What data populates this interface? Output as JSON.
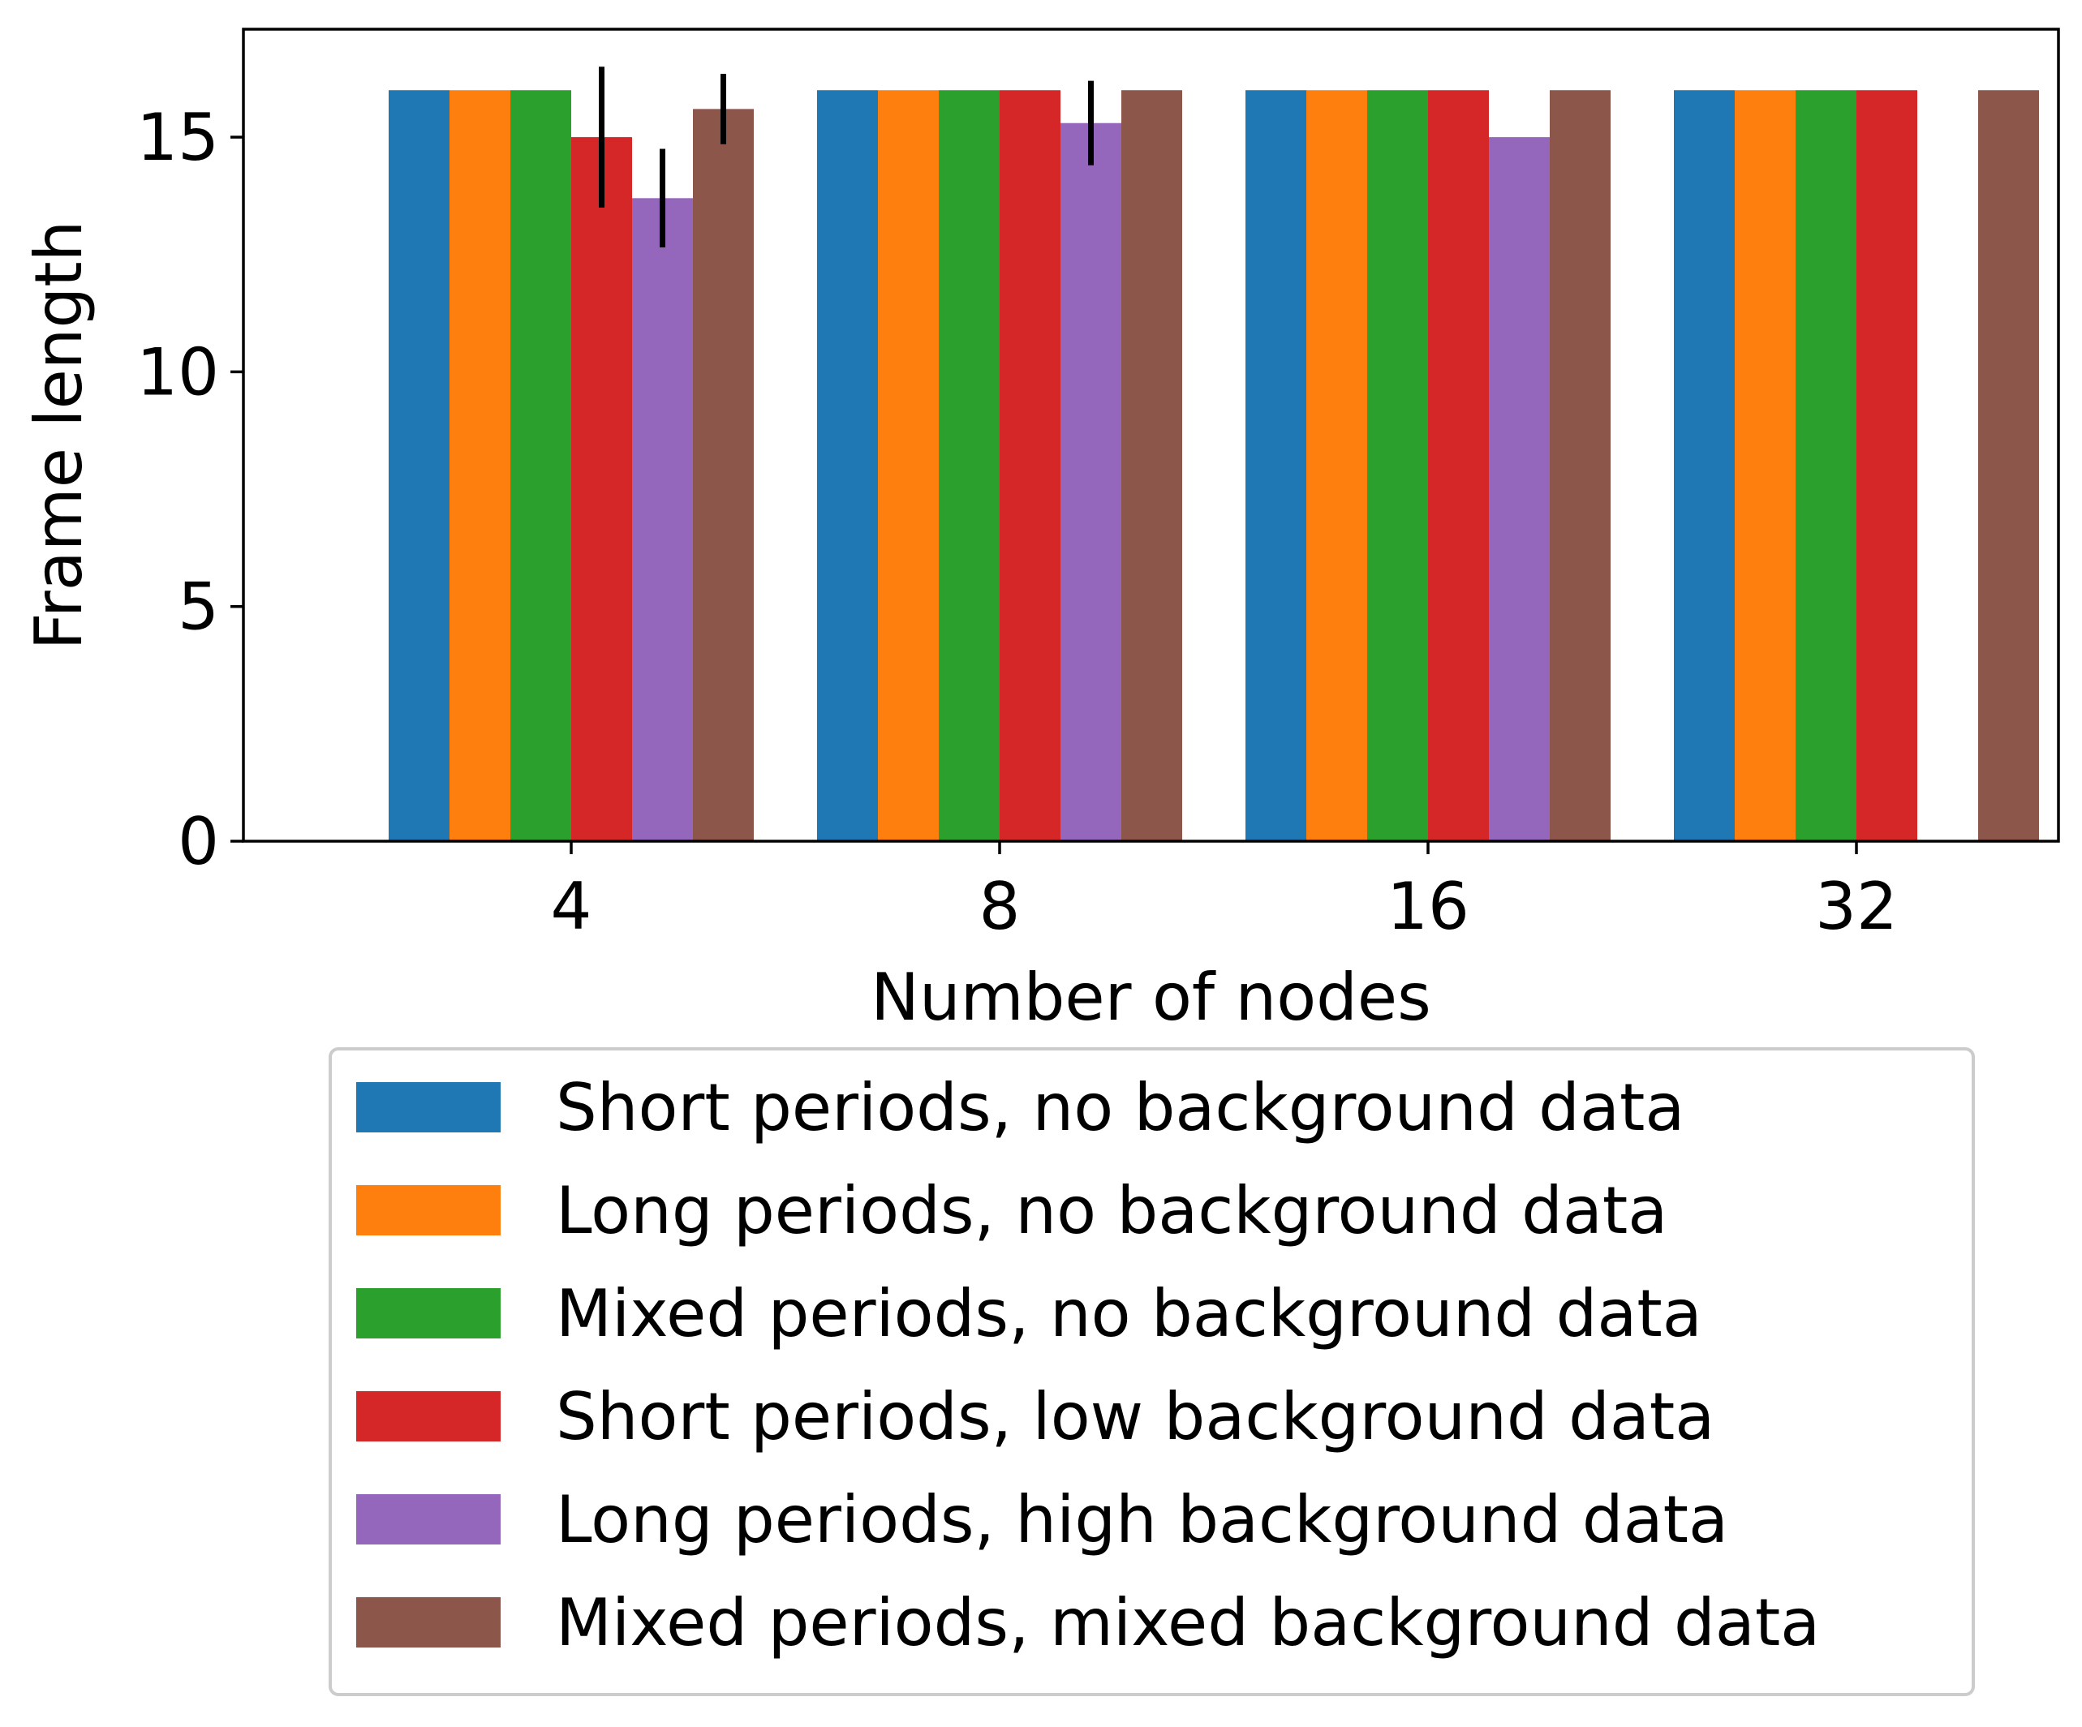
{
  "chart_data": {
    "type": "bar",
    "xlabel": "Number of nodes",
    "ylabel": "Frame length",
    "categories": [
      "4",
      "8",
      "16",
      "32"
    ],
    "yticks": [
      "0",
      "5",
      "10",
      "15"
    ],
    "ylim": [
      0,
      17.3
    ],
    "grid": false,
    "legend_position": "bottom",
    "series": [
      {
        "name": "Short periods, no background data",
        "color": "#1f77b4",
        "values": [
          16,
          16,
          16,
          16
        ],
        "errors": [
          0,
          0,
          0,
          0
        ]
      },
      {
        "name": "Long periods, no background data",
        "color": "#ff7f0e",
        "values": [
          16,
          16,
          16,
          16
        ],
        "errors": [
          0,
          0,
          0,
          0
        ]
      },
      {
        "name": "Mixed periods, no background data",
        "color": "#2ca02c",
        "values": [
          16,
          16,
          16,
          16
        ],
        "errors": [
          0,
          0,
          0,
          0
        ]
      },
      {
        "name": "Short periods, low background data",
        "color": "#d62728",
        "values": [
          15,
          16,
          16,
          16
        ],
        "errors": [
          1.5,
          0,
          0,
          0
        ]
      },
      {
        "name": "Long periods, high background data",
        "color": "#9467bd",
        "values": [
          13.7,
          15.3,
          15,
          0
        ],
        "errors": [
          1.05,
          0.9,
          0,
          0
        ]
      },
      {
        "name": "Mixed periods, mixed background data",
        "color": "#8c564b",
        "values": [
          15.6,
          16,
          16,
          16
        ],
        "errors": [
          0.75,
          0,
          0,
          0
        ]
      }
    ]
  }
}
